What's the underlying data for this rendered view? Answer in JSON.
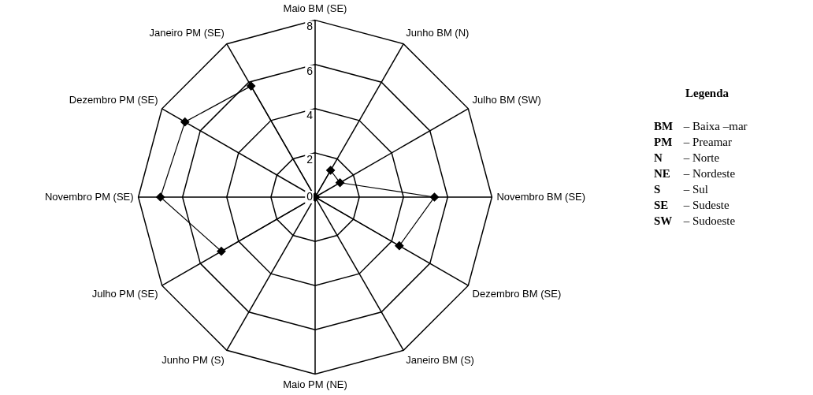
{
  "chart_data": {
    "type": "radar",
    "categories": [
      "Maio BM (SE)",
      "Junho BM (N)",
      "Julho BM (SW)",
      "Novembro BM (SE)",
      "Dezembro BM (SE)",
      "Janeiro BM (S)",
      "Maio PM (NE)",
      "Junho PM (S)",
      "Julho PM (SE)",
      "Novembro PM (SE)",
      "Dezembro PM (SE)",
      "Janeiro PM (SE)"
    ],
    "series": [
      {
        "color": "#000000",
        "values": [
          0,
          1.4,
          1.3,
          5.4,
          4.4,
          0,
          0,
          0,
          4.9,
          7.0,
          6.8,
          5.8
        ]
      }
    ],
    "ylim": [
      0,
      8
    ],
    "yticks": [
      0,
      2,
      4,
      6,
      8
    ],
    "grid": true,
    "legend": false,
    "marker": "diamond",
    "line_style": "solid",
    "annotations": [
      "Legenda",
      "BM – Baixa –mar",
      "PM – Preamar",
      "N – Norte",
      "NE – Nordeste",
      "S – Sul",
      "SE – Sudeste",
      "SW – Sudoeste"
    ]
  }
}
